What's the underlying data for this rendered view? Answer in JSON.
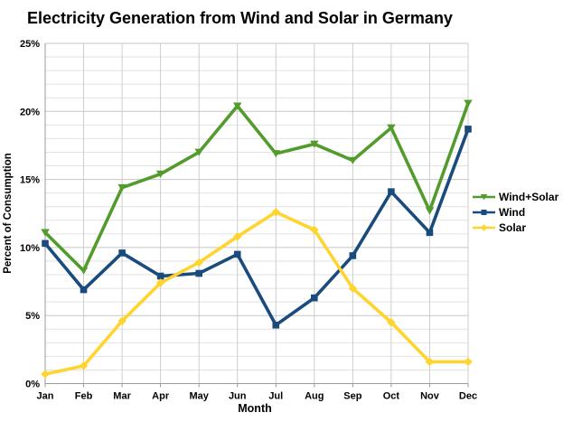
{
  "title": "Electricity Generation from Wind and Solar in Germany",
  "chart_data": {
    "type": "line",
    "title": "Electricity Generation from Wind and Solar in Germany",
    "xlabel": "Month",
    "ylabel": "Percent of Consumption",
    "ylim": [
      0,
      25
    ],
    "y_tick_step": 5,
    "y_minor_step": 1,
    "y_tick_labels": [
      "0%",
      "5%",
      "10%",
      "15%",
      "20%",
      "25%"
    ],
    "grid": true,
    "legend_position": "right",
    "categories": [
      "Jan",
      "Feb",
      "Mar",
      "Apr",
      "May",
      "Jun",
      "Jul",
      "Aug",
      "Sep",
      "Oct",
      "Nov",
      "Dec"
    ],
    "series": [
      {
        "name": "Wind+Solar",
        "color": "#549b2e",
        "marker": "triangle-down",
        "values": [
          11.1,
          8.3,
          14.4,
          15.4,
          17.0,
          20.4,
          16.9,
          17.6,
          16.4,
          18.8,
          12.7,
          20.6
        ]
      },
      {
        "name": "Wind",
        "color": "#1a4b7d",
        "marker": "square",
        "values": [
          10.3,
          6.9,
          9.6,
          7.9,
          8.1,
          9.5,
          4.3,
          6.3,
          9.4,
          14.1,
          11.1,
          18.7
        ]
      },
      {
        "name": "Solar",
        "color": "#ffd42e",
        "marker": "diamond",
        "values": [
          0.7,
          1.3,
          4.6,
          7.4,
          8.9,
          10.8,
          12.6,
          11.3,
          7.0,
          4.5,
          1.6,
          1.6
        ]
      }
    ]
  }
}
